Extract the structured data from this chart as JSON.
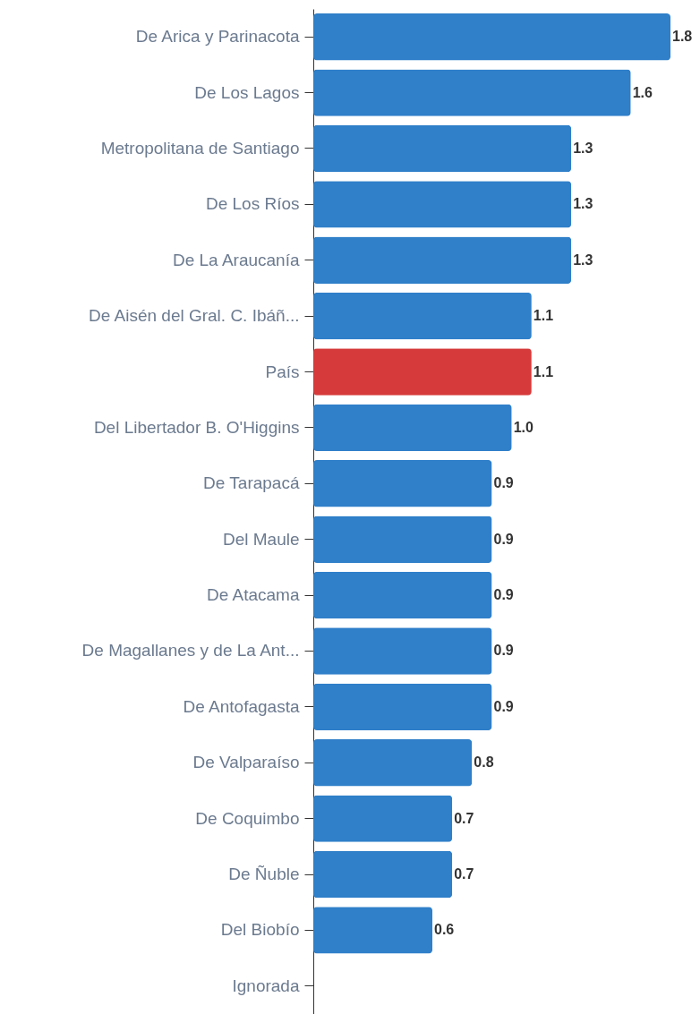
{
  "chart_data": {
    "type": "bar",
    "orientation": "horizontal",
    "value_labels": [
      "1.8",
      "1.6",
      "1.3",
      "1.3",
      "1.3",
      "1.1",
      "1.1",
      "1.0",
      "0.9",
      "0.9",
      "0.9",
      "0.9",
      "0.9",
      "0.8",
      "0.7",
      "0.7",
      "0.6",
      null
    ],
    "categories": [
      "De Arica y Parinacota",
      "De Los Lagos",
      "Metropolitana de Santiago",
      "De Los Ríos",
      "De La Araucanía",
      "De Aisén del Gral. C. Ibáñ...",
      "País",
      "Del Libertador B. O'Higgins",
      "De Tarapacá",
      "Del Maule",
      "De Atacama",
      "De Magallanes y de La Ant...",
      "De Antofagasta",
      "De Valparaíso",
      "De Coquimbo",
      "De Ñuble",
      "Del Biobío",
      "Ignorada"
    ],
    "values": [
      1.8,
      1.6,
      1.3,
      1.3,
      1.3,
      1.1,
      1.1,
      1.0,
      0.9,
      0.9,
      0.9,
      0.9,
      0.9,
      0.8,
      0.7,
      0.7,
      0.6,
      null
    ],
    "colors": [
      "#2f7fc9",
      "#2f7fc9",
      "#2f7fc9",
      "#2f7fc9",
      "#2f7fc9",
      "#2f7fc9",
      "#d63a3a",
      "#2f7fc9",
      "#2f7fc9",
      "#2f7fc9",
      "#2f7fc9",
      "#2f7fc9",
      "#2f7fc9",
      "#2f7fc9",
      "#2f7fc9",
      "#2f7fc9",
      "#2f7fc9",
      "#2f7fc9"
    ]
  }
}
